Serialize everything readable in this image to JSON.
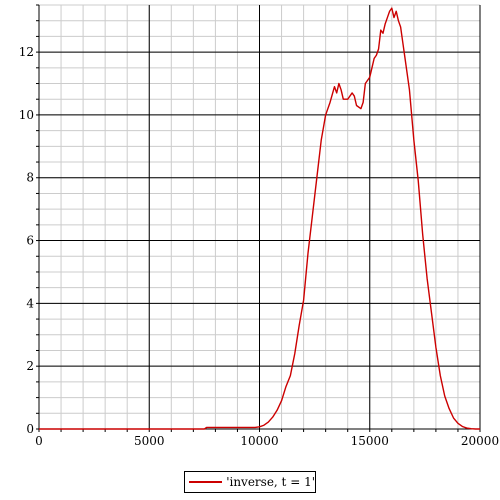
{
  "chart_data": {
    "type": "line",
    "title": "",
    "xlabel": "",
    "ylabel": "",
    "xlim": [
      0,
      20000
    ],
    "ylim": [
      0,
      13.5
    ],
    "x_ticks": [
      0,
      5000,
      10000,
      15000,
      20000
    ],
    "y_ticks": [
      0,
      2,
      4,
      6,
      8,
      10,
      12
    ],
    "x_tick_labels": [
      "0",
      "5000",
      "10000",
      "15000",
      "20000"
    ],
    "y_tick_labels": [
      "0",
      "2",
      "4",
      "6",
      "8",
      "10",
      "12"
    ],
    "grid": true,
    "legend_position": "bottom",
    "series": [
      {
        "name": "'inverse, t = 1'",
        "color": "#cc0000",
        "x": [
          0,
          7500,
          7600,
          9800,
          10000,
          10200,
          10400,
          10600,
          10800,
          11000,
          11200,
          11400,
          11600,
          11800,
          12000,
          12200,
          12400,
          12600,
          12800,
          13000,
          13200,
          13400,
          13500,
          13600,
          13700,
          13800,
          14000,
          14200,
          14300,
          14400,
          14600,
          14700,
          14800,
          15000,
          15100,
          15200,
          15300,
          15400,
          15500,
          15600,
          15700,
          15800,
          15900,
          16000,
          16100,
          16200,
          16300,
          16400,
          16500,
          16600,
          16800,
          17000,
          17200,
          17400,
          17600,
          17800,
          18000,
          18200,
          18400,
          18600,
          18800,
          19000,
          19200,
          19400,
          19600,
          19800,
          20000
        ],
        "y": [
          0,
          0,
          0.05,
          0.05,
          0.07,
          0.12,
          0.22,
          0.38,
          0.6,
          0.9,
          1.35,
          1.7,
          2.4,
          3.3,
          4.1,
          5.6,
          6.8,
          8.0,
          9.2,
          10.0,
          10.4,
          10.9,
          10.7,
          11.0,
          10.8,
          10.5,
          10.5,
          10.7,
          10.6,
          10.3,
          10.2,
          10.4,
          11.0,
          11.2,
          11.5,
          11.8,
          11.9,
          12.1,
          12.7,
          12.6,
          12.9,
          13.1,
          13.3,
          13.4,
          13.1,
          13.3,
          13.0,
          12.8,
          12.3,
          11.8,
          10.8,
          9.2,
          7.9,
          6.2,
          4.8,
          3.7,
          2.6,
          1.7,
          1.05,
          0.65,
          0.35,
          0.18,
          0.08,
          0.03,
          0.01,
          0.0,
          0.0
        ]
      }
    ]
  },
  "legend": {
    "label": "'inverse, t = 1'"
  }
}
